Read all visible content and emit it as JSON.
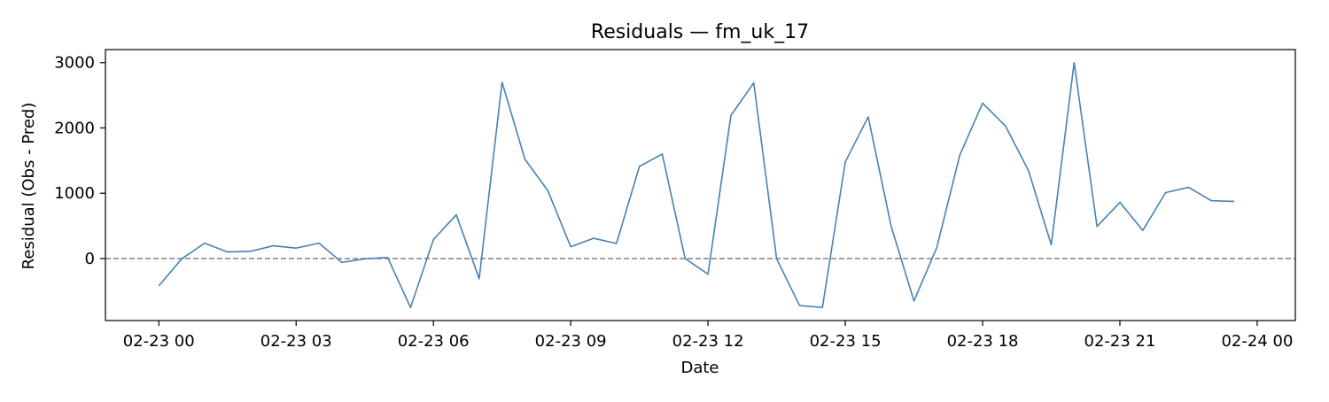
{
  "chart_data": {
    "type": "line",
    "title": "Residuals — fm_uk_17",
    "xlabel": "Date",
    "ylabel": "Residual (Obs - Pred)",
    "x_tick_labels": [
      "02-23 00",
      "02-23 03",
      "02-23 06",
      "02-23 09",
      "02-23 12",
      "02-23 15",
      "02-23 18",
      "02-23 21",
      "02-24 00"
    ],
    "y_tick_labels": [
      "0",
      "1000",
      "2000",
      "3000"
    ],
    "x_range": [
      "2025-02-22 22:50",
      "2025-02-24 00:50"
    ],
    "ylim": [
      -950,
      3200
    ],
    "grid": false,
    "reference_line": {
      "y": 0,
      "style": "dashed",
      "color": "#808080"
    },
    "series": [
      {
        "color": "#4682b4",
        "x": [
          "2025-02-23 00:00",
          "2025-02-23 00:30",
          "2025-02-23 01:00",
          "2025-02-23 01:30",
          "2025-02-23 02:00",
          "2025-02-23 02:30",
          "2025-02-23 03:00",
          "2025-02-23 03:30",
          "2025-02-23 04:00",
          "2025-02-23 04:30",
          "2025-02-23 05:00",
          "2025-02-23 05:30",
          "2025-02-23 06:00",
          "2025-02-23 06:30",
          "2025-02-23 07:00",
          "2025-02-23 07:30",
          "2025-02-23 08:00",
          "2025-02-23 08:30",
          "2025-02-23 09:00",
          "2025-02-23 09:30",
          "2025-02-23 10:00",
          "2025-02-23 10:30",
          "2025-02-23 11:00",
          "2025-02-23 11:30",
          "2025-02-23 12:00",
          "2025-02-23 12:30",
          "2025-02-23 13:00",
          "2025-02-23 13:30",
          "2025-02-23 14:00",
          "2025-02-23 14:30",
          "2025-02-23 15:00",
          "2025-02-23 15:30",
          "2025-02-23 16:00",
          "2025-02-23 16:30",
          "2025-02-23 17:00",
          "2025-02-23 17:30",
          "2025-02-23 18:00",
          "2025-02-23 18:30",
          "2025-02-23 19:00",
          "2025-02-23 19:30",
          "2025-02-23 20:00",
          "2025-02-23 20:30",
          "2025-02-23 21:00",
          "2025-02-23 21:30",
          "2025-02-23 22:00",
          "2025-02-23 22:30",
          "2025-02-23 23:00",
          "2025-02-23 23:30"
        ],
        "values": [
          -420,
          -5,
          235,
          100,
          110,
          195,
          160,
          235,
          -60,
          -5,
          15,
          -750,
          290,
          670,
          -310,
          2700,
          1520,
          1040,
          180,
          310,
          230,
          1410,
          1600,
          0,
          -240,
          2190,
          2690,
          -5,
          -720,
          -750,
          1480,
          2170,
          500,
          -650,
          170,
          1580,
          2380,
          2030,
          1350,
          210,
          3000,
          490,
          860,
          430,
          1010,
          1090,
          885,
          875
        ]
      }
    ]
  }
}
